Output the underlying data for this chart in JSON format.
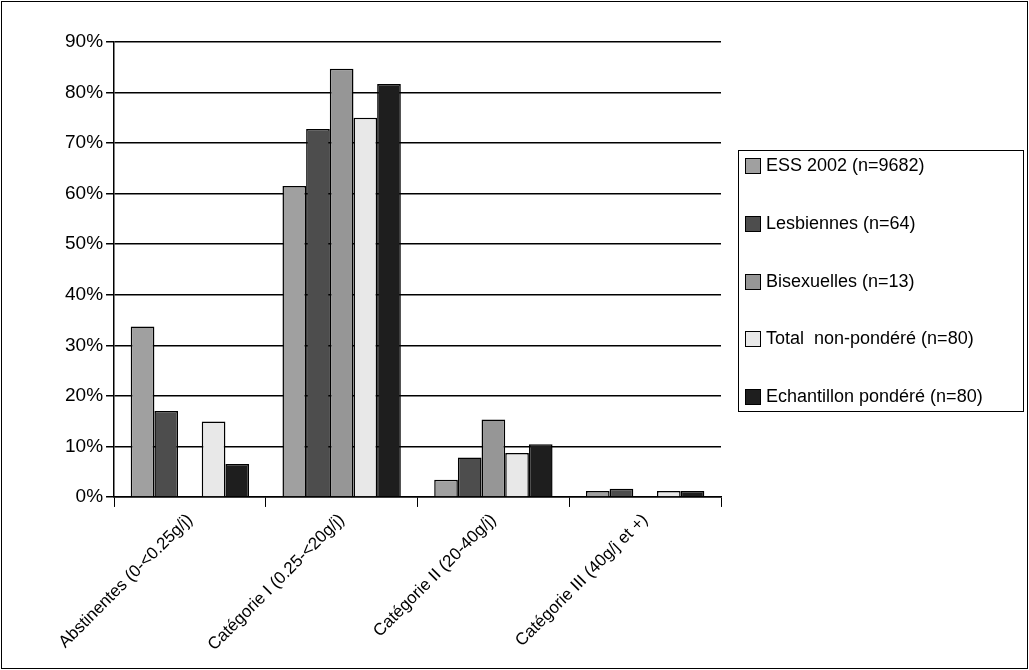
{
  "chart_data": {
    "type": "bar",
    "categories": [
      "Abstinentes (0-<0.25g/j)",
      "Catégorie I (0.25-<20g/j)",
      "Catégorie II (20-40g/j)",
      "Catégorie III (40g/j et +)"
    ],
    "series": [
      {
        "name": "ESS 2002 (n=9682)",
        "color": "#a0a0a0",
        "values": [
          33.7,
          61.5,
          3.4,
          1.2
        ]
      },
      {
        "name": "Lesbiennes (n=64)",
        "color": "#4d4d4d",
        "values": [
          17.0,
          72.8,
          7.8,
          1.6
        ]
      },
      {
        "name": "Bisexuelles (n=13)",
        "color": "#969696",
        "values": [
          0,
          84.7,
          15.3,
          0
        ]
      },
      {
        "name": "Total  non-pondéré (n=80)",
        "color": "#e8e8e8",
        "values": [
          14.9,
          75.0,
          8.7,
          1.2
        ]
      },
      {
        "name": "Echantillon pondéré (n=80)",
        "color": "#1e1e1e",
        "values": [
          6.5,
          81.7,
          10.4,
          1.2
        ]
      }
    ],
    "ylim": [
      0,
      90
    ],
    "yticks": [
      {
        "value": 0,
        "label": "0%"
      },
      {
        "value": 10,
        "label": "10%"
      },
      {
        "value": 20,
        "label": "20%"
      },
      {
        "value": 30,
        "label": "30%"
      },
      {
        "value": 40,
        "label": "40%"
      },
      {
        "value": 50,
        "label": "50%"
      },
      {
        "value": 60,
        "label": "60%"
      },
      {
        "value": 70,
        "label": "70%"
      },
      {
        "value": 80,
        "label": "80%"
      },
      {
        "value": 90,
        "label": "90%"
      }
    ],
    "grid": "y",
    "legend": "right"
  }
}
